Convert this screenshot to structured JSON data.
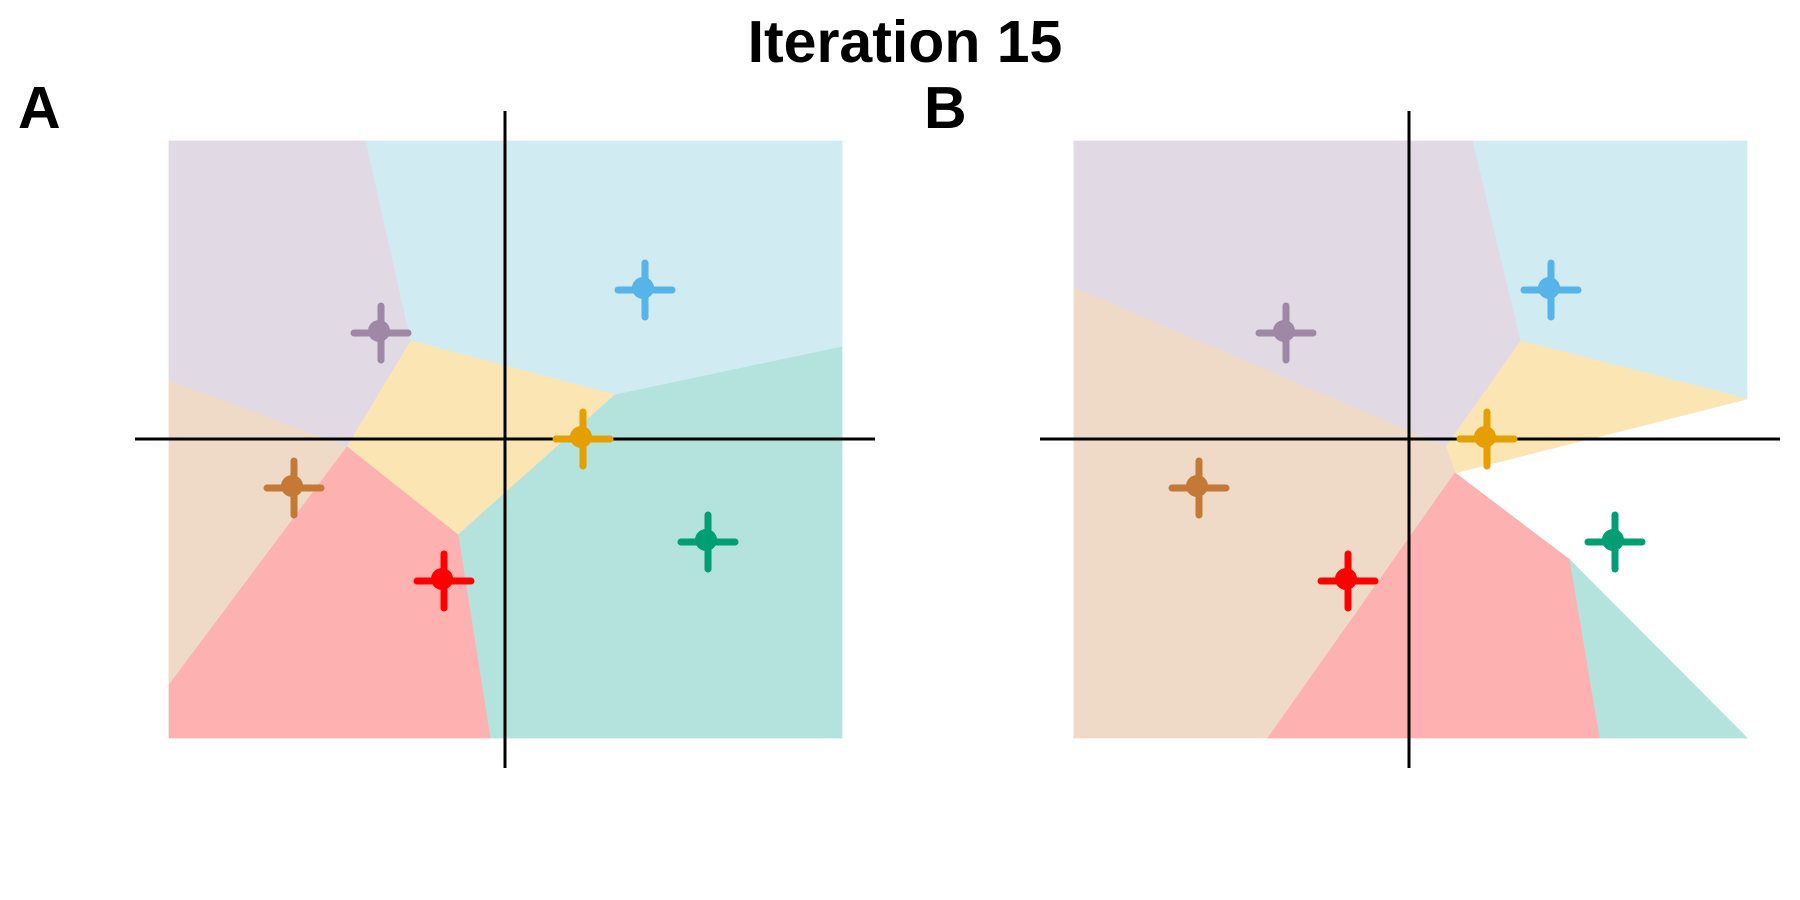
{
  "title": "Iteration 15",
  "colors": {
    "purple": "#9E88A6",
    "cyan": "#56B4E9",
    "orange": "#E69F00",
    "teal": "#009E73",
    "red": "#FF0000",
    "brown": "#C47A36",
    "axis": "#000000"
  },
  "panels": [
    {
      "label": "A",
      "cells": [
        {
          "cluster": "purple",
          "fill": "#E1DAE5"
        },
        {
          "cluster": "cyan",
          "fill": "#D0EBF2"
        },
        {
          "cluster": "orange",
          "fill": "#FBE6B3"
        },
        {
          "cluster": "teal",
          "fill": "#B3E3DC"
        },
        {
          "cluster": "brown",
          "fill": "#EEDAC6"
        },
        {
          "cluster": "red",
          "fill": "#FDB1B1"
        }
      ],
      "centroids": [
        {
          "cluster": "purple",
          "icon": "plus-marker-icon"
        },
        {
          "cluster": "cyan",
          "icon": "plus-marker-icon"
        },
        {
          "cluster": "orange",
          "icon": "plus-marker-icon"
        },
        {
          "cluster": "brown",
          "icon": "plus-marker-icon"
        },
        {
          "cluster": "red",
          "icon": "plus-marker-icon"
        },
        {
          "cluster": "teal",
          "icon": "plus-marker-icon"
        }
      ]
    },
    {
      "label": "B",
      "cells": [
        {
          "cluster": "purple",
          "fill": "#E1DAE5"
        },
        {
          "cluster": "cyan",
          "fill": "#D0EBF2"
        },
        {
          "cluster": "orange",
          "fill": "#FBE6B3"
        },
        {
          "cluster": "brown",
          "fill": "#EEDAC6"
        },
        {
          "cluster": "red",
          "fill": "#FDB1B1"
        },
        {
          "cluster": "teal",
          "fill": "#B3E3DC"
        }
      ],
      "centroids": [
        {
          "cluster": "purple",
          "icon": "plus-marker-icon"
        },
        {
          "cluster": "cyan",
          "icon": "plus-marker-icon"
        },
        {
          "cluster": "orange",
          "icon": "plus-marker-icon"
        },
        {
          "cluster": "brown",
          "icon": "plus-marker-icon"
        },
        {
          "cluster": "red",
          "icon": "plus-marker-icon"
        },
        {
          "cluster": "teal",
          "icon": "plus-marker-icon"
        }
      ]
    }
  ]
}
